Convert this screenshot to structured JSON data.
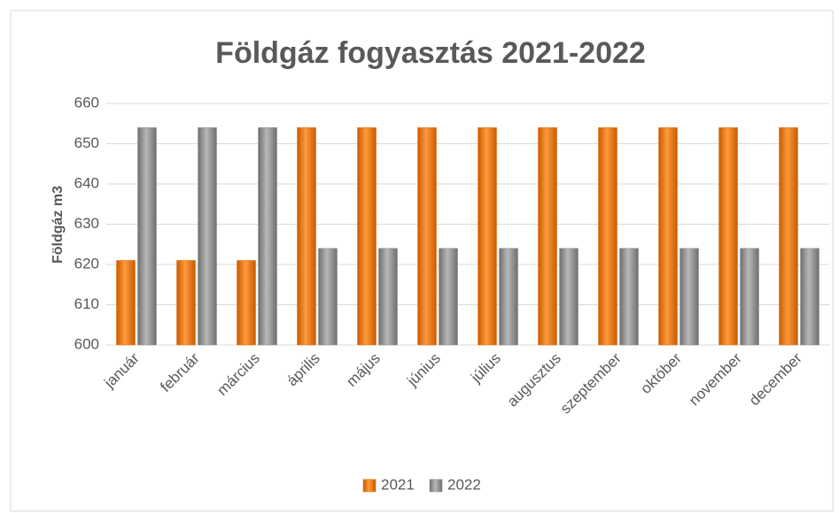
{
  "chart_data": {
    "type": "bar",
    "title": "Földgáz fogyasztás 2021-2022",
    "y_label": "Földgáz m3",
    "categories": [
      "január",
      "február",
      "március",
      "április",
      "május",
      "június",
      "július",
      "augusztus",
      "szeptember",
      "október",
      "november",
      "december"
    ],
    "series": [
      {
        "name": "2021",
        "color": "#e8700c",
        "values": [
          621,
          621,
          621,
          654,
          654,
          654,
          654,
          654,
          654,
          654,
          654,
          654
        ]
      },
      {
        "name": "2022",
        "color": "#8c8c8c",
        "values": [
          654,
          654,
          654,
          624,
          624,
          624,
          624,
          624,
          624,
          624,
          624,
          624
        ]
      }
    ],
    "ylim": [
      600,
      660
    ],
    "yticks": [
      600,
      610,
      620,
      630,
      640,
      650,
      660
    ],
    "grid": true,
    "legend": "bottom"
  }
}
